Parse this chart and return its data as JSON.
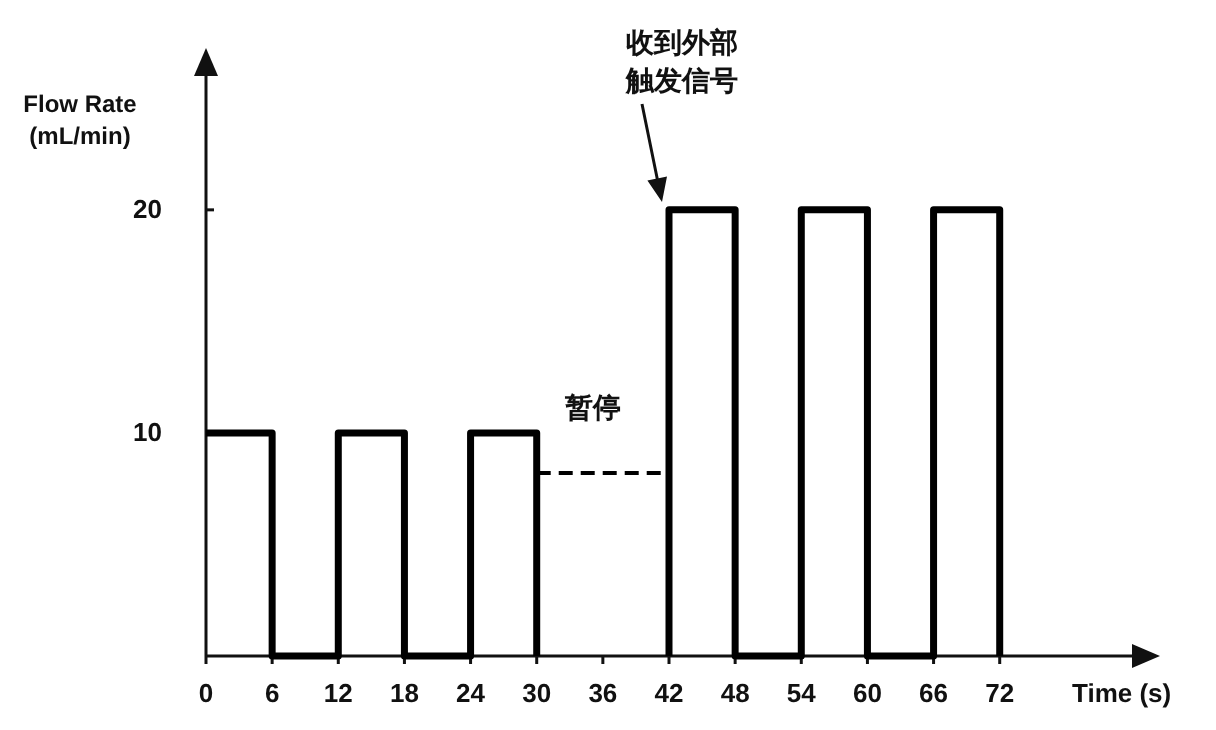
{
  "chart_data": {
    "type": "line",
    "xlabel": "Time (s)",
    "ylabel": "Flow Rate\n(mL/min)",
    "xlim": [
      0,
      84
    ],
    "ylim": [
      0,
      26
    ],
    "xticks": [
      0,
      6,
      12,
      18,
      24,
      30,
      36,
      42,
      48,
      54,
      60,
      66,
      72
    ],
    "yticks": [
      10,
      20
    ],
    "grid": false,
    "marker": "none",
    "series": [
      {
        "color": "#000000",
        "line_style": "solid",
        "x": [
          0,
          6,
          6,
          12,
          12,
          18,
          18,
          24,
          24,
          30,
          30
        ],
        "values": [
          10,
          10,
          0,
          0,
          10,
          10,
          0,
          0,
          10,
          10,
          0
        ]
      },
      {
        "color": "#000000",
        "line_style": "dashed",
        "x": [
          30,
          42
        ],
        "values": [
          8.2,
          8.2
        ]
      },
      {
        "color": "#000000",
        "line_style": "solid",
        "x": [
          42,
          42,
          48,
          48,
          54,
          54,
          60,
          60,
          66,
          66,
          72,
          72
        ],
        "values": [
          0,
          20,
          20,
          0,
          0,
          20,
          20,
          0,
          0,
          20,
          20,
          0
        ]
      }
    ],
    "annotations": [
      "收到外部触发信号",
      {
        "text": "暂停",
        "x": 36,
        "y": 8.2
      }
    ]
  }
}
